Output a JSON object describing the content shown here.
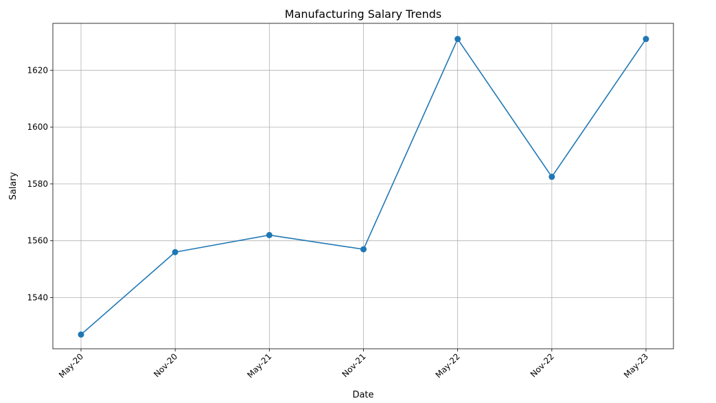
{
  "chart_data": {
    "type": "line",
    "title": "Manufacturing Salary Trends",
    "xlabel": "Date",
    "ylabel": "Salary",
    "categories": [
      "May-20",
      "Nov-20",
      "May-21",
      "Nov-21",
      "May-22",
      "Nov-22",
      "May-23"
    ],
    "series": [
      {
        "values": [
          1527,
          1556,
          1562,
          1557,
          1631,
          1582.5,
          1631
        ],
        "color": "#1f77b4",
        "marker": "circle"
      }
    ],
    "ylim": [
      1522,
      1636.5
    ],
    "yticks": [
      1540,
      1560,
      1580,
      1600,
      1620
    ],
    "grid": true,
    "x_tick_rotation": 45
  }
}
